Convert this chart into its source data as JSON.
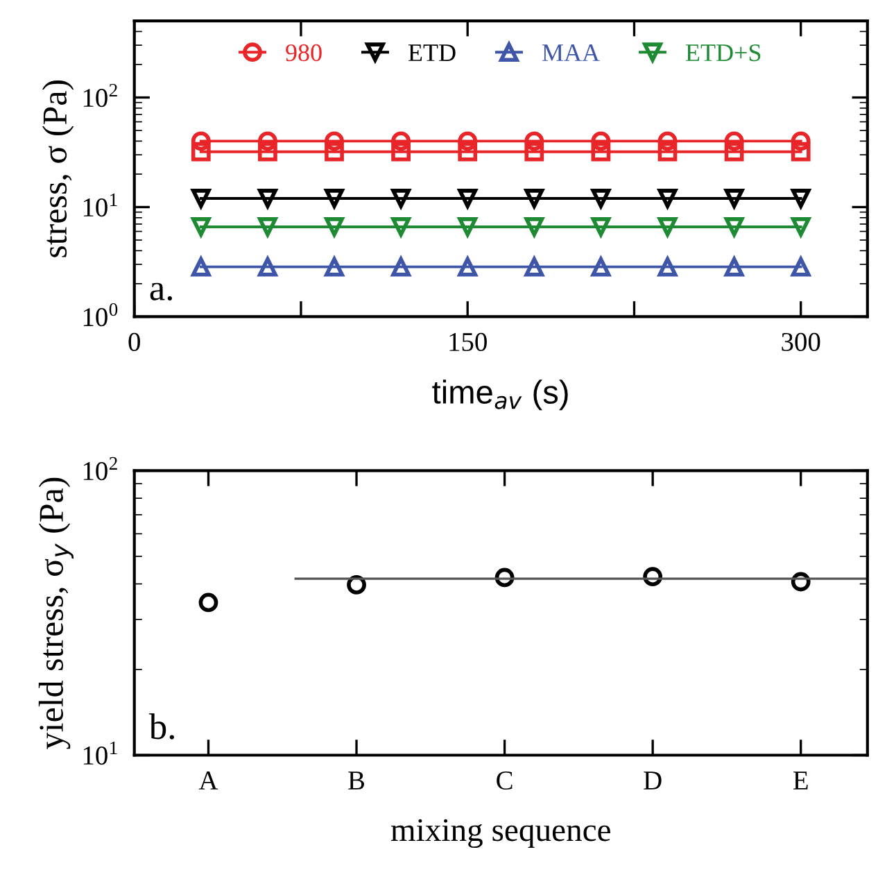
{
  "chart_data": [
    {
      "type": "line",
      "xlabel": "time$_{av}$ (s)",
      "ylabel": "stress, σ (Pa)",
      "log": "y",
      "xlim": [
        0,
        330
      ],
      "ylim": [
        1,
        500
      ],
      "xticks": [
        0,
        {
          "value": 75,
          "label": null
        },
        150,
        {
          "value": 225,
          "label": null
        },
        300
      ],
      "yticks": [
        {
          "value": 1,
          "label": "10$^{0}$"
        },
        {
          "value": 10,
          "label": "10$^{1}$"
        },
        {
          "value": 100,
          "label": "10$^{2}$"
        }
      ],
      "x": [
        30,
        60,
        90,
        120,
        150,
        180,
        210,
        240,
        270,
        300
      ],
      "legend": "top",
      "grid": false,
      "annotations": [
        "a."
      ],
      "series": [
        {
          "name": "980",
          "color": "#e8262a",
          "marker": "circle",
          "values": [
            40,
            40,
            40,
            40,
            40,
            40,
            40,
            40,
            40,
            40
          ]
        },
        {
          "color": "#e8262a",
          "marker": "square",
          "values": [
            32,
            32,
            32,
            32,
            32,
            32,
            32,
            32,
            32,
            32
          ]
        },
        {
          "name": "ETD",
          "color": "#000000",
          "marker": "triangle_down",
          "values": [
            12,
            12,
            12,
            12,
            12,
            12,
            12,
            12,
            12,
            12
          ]
        },
        {
          "name": "MAA",
          "color": "#3f55a8",
          "marker": "triangle",
          "values": [
            2.85,
            2.85,
            2.85,
            2.85,
            2.85,
            2.85,
            2.85,
            2.85,
            2.85,
            2.85
          ]
        },
        {
          "name": "ETD+S",
          "color": "#1e8a33",
          "marker": "triangle_down",
          "values": [
            6.6,
            6.6,
            6.6,
            6.6,
            6.6,
            6.6,
            6.6,
            6.6,
            6.6,
            6.6
          ]
        }
      ]
    },
    {
      "type": "scatter",
      "xlabel": "mixing sequence",
      "ylabel": "yield stress, σ$_{y}$ (Pa)",
      "log": "y",
      "ylim": [
        10,
        100
      ],
      "yticks": [
        {
          "value": 10,
          "label": "10$^{1}$"
        },
        {
          "value": 100,
          "label": "10$^{2}$"
        }
      ],
      "categories": [
        "A",
        "B",
        "C",
        "D",
        "E"
      ],
      "grid": false,
      "annotations": [
        "b."
      ],
      "series": [
        {
          "color": "#000000",
          "marker": "circle",
          "values": [
            34.4,
            39.7,
            42.1,
            42.4,
            40.7
          ]
        }
      ],
      "ref_lines": [
        {
          "axis": "y",
          "value": 41.7,
          "color": "#555555"
        }
      ]
    }
  ]
}
